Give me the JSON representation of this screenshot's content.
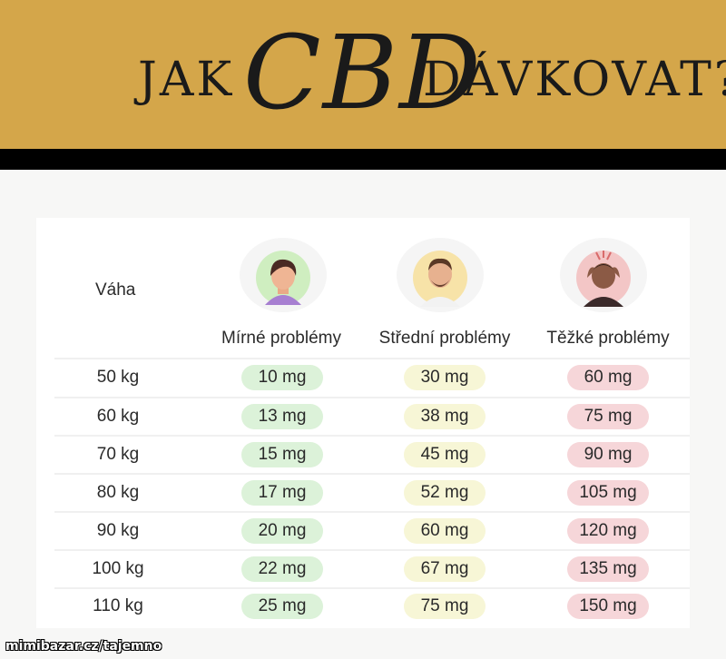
{
  "header": {
    "title_part1": "JAK",
    "title_part2": "CBD",
    "title_part3": "DÁVKOVAT?",
    "banner_color": "#d4a64a"
  },
  "table": {
    "weight_header": "Váha",
    "columns": [
      {
        "label": "Mírné problémy",
        "icon": "woman-calm-icon",
        "color": "#dcf2d9"
      },
      {
        "label": "Střední problémy",
        "icon": "man-bearded-icon",
        "color": "#f7f6d6"
      },
      {
        "label": "Těžké problémy",
        "icon": "person-headache-icon",
        "color": "#f6d6d9"
      }
    ],
    "rows": [
      {
        "weight": "50 kg",
        "mild": "10 mg",
        "moderate": "30 mg",
        "severe": "60 mg"
      },
      {
        "weight": "60 kg",
        "mild": "13 mg",
        "moderate": "38 mg",
        "severe": "75 mg"
      },
      {
        "weight": "70 kg",
        "mild": "15 mg",
        "moderate": "45 mg",
        "severe": "90 mg"
      },
      {
        "weight": "80 kg",
        "mild": "17 mg",
        "moderate": "52 mg",
        "severe": "105 mg"
      },
      {
        "weight": "90 kg",
        "mild": "20 mg",
        "moderate": "60 mg",
        "severe": "120 mg"
      },
      {
        "weight": "100 kg",
        "mild": "22 mg",
        "moderate": "67 mg",
        "severe": "135 mg"
      },
      {
        "weight": "110 kg",
        "mild": "25 mg",
        "moderate": "75 mg",
        "severe": "150 mg"
      }
    ]
  },
  "watermark": "mimibazar.cz/tajemno"
}
